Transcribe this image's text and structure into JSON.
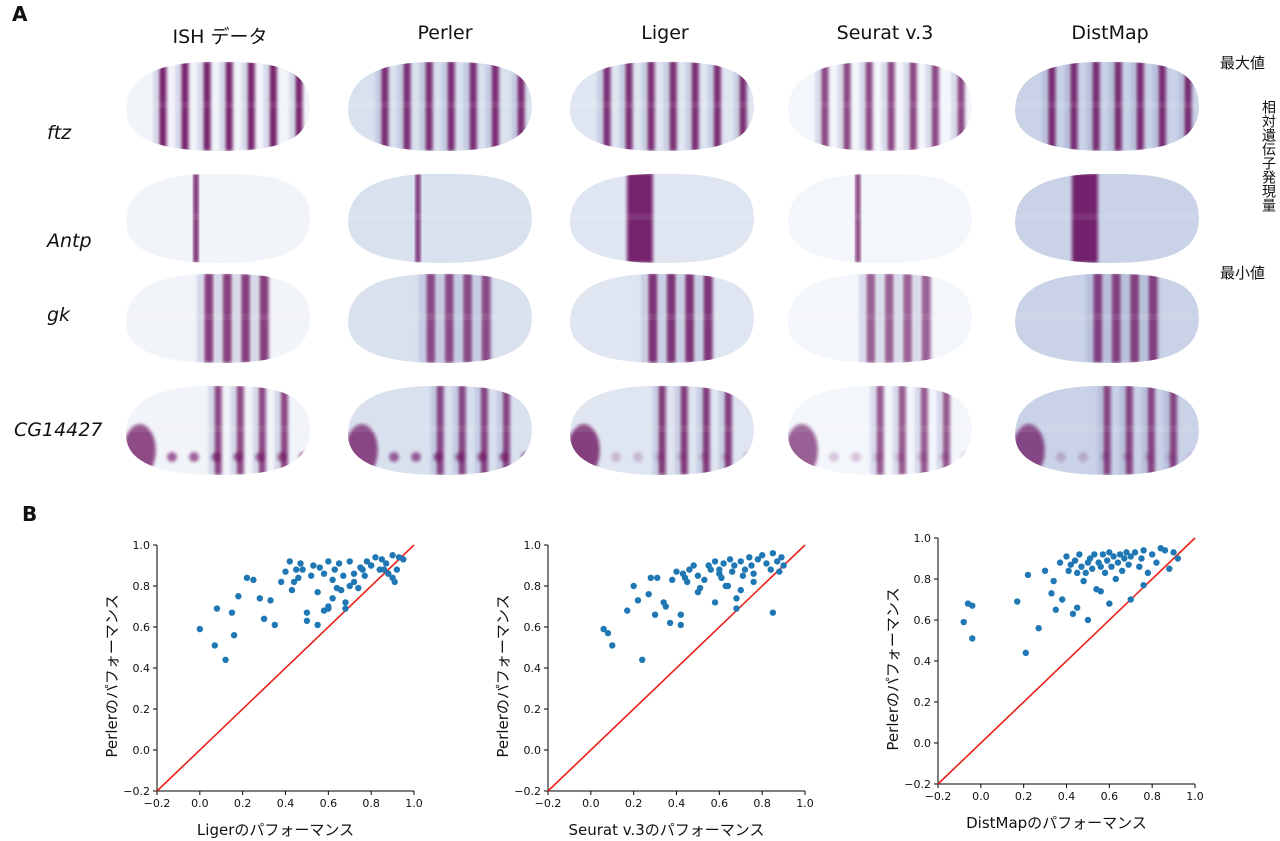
{
  "panel_a": {
    "letter": "A",
    "columns": [
      "ISH データ",
      "Perler",
      "Liger",
      "Seurat v.3",
      "DistMap"
    ],
    "genes": [
      "ftz",
      "Antp",
      "gk",
      "CG14427"
    ],
    "colorbar": {
      "max_label": "最大値",
      "min_label": "最小値",
      "title": "相対遺伝子発現量",
      "color_max": "#6a0a5e",
      "color_mid": "#8f93c6",
      "color_min": "#f3f6fb"
    }
  },
  "panel_b": {
    "letter": "B"
  },
  "chart_data": [
    {
      "type": "scatter",
      "xlabel": "Ligerのパフォーマンス",
      "ylabel": "Perlerのパフォーマンス",
      "xlim": [
        -0.2,
        1.0
      ],
      "ylim": [
        -0.2,
        1.0
      ],
      "ticks": [
        -0.2,
        0.0,
        0.2,
        0.4,
        0.6,
        0.8,
        1.0
      ],
      "diagonal": true,
      "point_color": "#1f77b4",
      "line_color": "#e8221b",
      "x": [
        0.0,
        0.07,
        0.08,
        0.12,
        0.15,
        0.16,
        0.18,
        0.22,
        0.25,
        0.28,
        0.3,
        0.33,
        0.35,
        0.38,
        0.4,
        0.42,
        0.43,
        0.45,
        0.46,
        0.47,
        0.5,
        0.52,
        0.53,
        0.55,
        0.55,
        0.56,
        0.58,
        0.6,
        0.6,
        0.62,
        0.63,
        0.64,
        0.65,
        0.66,
        0.67,
        0.68,
        0.7,
        0.7,
        0.72,
        0.74,
        0.75,
        0.77,
        0.78,
        0.8,
        0.82,
        0.84,
        0.85,
        0.87,
        0.88,
        0.9,
        0.91,
        0.92,
        0.93,
        0.95,
        0.5,
        0.58,
        0.62,
        0.68,
        0.72,
        0.76,
        0.8,
        0.86,
        0.9,
        0.44,
        0.48,
        0.6
      ],
      "y": [
        0.59,
        0.51,
        0.69,
        0.44,
        0.67,
        0.56,
        0.75,
        0.84,
        0.83,
        0.74,
        0.64,
        0.73,
        0.61,
        0.82,
        0.87,
        0.92,
        0.78,
        0.88,
        0.84,
        0.91,
        0.67,
        0.85,
        0.9,
        0.61,
        0.77,
        0.89,
        0.86,
        0.92,
        0.69,
        0.83,
        0.88,
        0.79,
        0.91,
        0.78,
        0.85,
        0.72,
        0.8,
        0.92,
        0.86,
        0.79,
        0.89,
        0.85,
        0.92,
        0.9,
        0.94,
        0.88,
        0.93,
        0.91,
        0.86,
        0.95,
        0.82,
        0.88,
        0.94,
        0.93,
        0.63,
        0.68,
        0.74,
        0.69,
        0.82,
        0.88,
        0.9,
        0.88,
        0.84,
        0.82,
        0.88,
        0.7
      ]
    },
    {
      "type": "scatter",
      "xlabel": "Seurat v.3のパフォーマンス",
      "ylabel": "Perlerのパフォーマンス",
      "xlim": [
        -0.2,
        1.0
      ],
      "ylim": [
        -0.2,
        1.0
      ],
      "ticks": [
        -0.2,
        0.0,
        0.2,
        0.4,
        0.6,
        0.8,
        1.0
      ],
      "diagonal": true,
      "point_color": "#1f77b4",
      "line_color": "#e8221b",
      "x": [
        0.06,
        0.08,
        0.1,
        0.17,
        0.2,
        0.22,
        0.24,
        0.27,
        0.28,
        0.3,
        0.31,
        0.35,
        0.37,
        0.38,
        0.4,
        0.42,
        0.43,
        0.45,
        0.46,
        0.48,
        0.5,
        0.51,
        0.53,
        0.55,
        0.56,
        0.58,
        0.6,
        0.61,
        0.62,
        0.63,
        0.65,
        0.66,
        0.67,
        0.68,
        0.7,
        0.71,
        0.72,
        0.74,
        0.75,
        0.76,
        0.78,
        0.8,
        0.82,
        0.84,
        0.85,
        0.87,
        0.88,
        0.89,
        0.9,
        0.42,
        0.5,
        0.58,
        0.64,
        0.7,
        0.76,
        0.85,
        0.34,
        0.44,
        0.6,
        0.68
      ],
      "y": [
        0.59,
        0.57,
        0.51,
        0.68,
        0.8,
        0.73,
        0.44,
        0.76,
        0.84,
        0.66,
        0.84,
        0.7,
        0.62,
        0.83,
        0.87,
        0.61,
        0.86,
        0.82,
        0.88,
        0.9,
        0.85,
        0.79,
        0.83,
        0.9,
        0.88,
        0.92,
        0.86,
        0.84,
        0.91,
        0.8,
        0.93,
        0.87,
        0.9,
        0.74,
        0.92,
        0.85,
        0.88,
        0.94,
        0.9,
        0.82,
        0.93,
        0.95,
        0.91,
        0.88,
        0.96,
        0.92,
        0.87,
        0.94,
        0.9,
        0.66,
        0.77,
        0.72,
        0.8,
        0.78,
        0.86,
        0.67,
        0.72,
        0.84,
        0.88,
        0.69
      ]
    },
    {
      "type": "scatter",
      "xlabel": "DistMapのパフォーマンス",
      "ylabel": "Perlerのパフォーマンス",
      "xlim": [
        -0.2,
        1.0
      ],
      "ylim": [
        -0.2,
        1.0
      ],
      "ticks": [
        -0.2,
        0.0,
        0.2,
        0.4,
        0.6,
        0.8,
        1.0
      ],
      "diagonal": true,
      "point_color": "#1f77b4",
      "line_color": "#e8221b",
      "x": [
        -0.08,
        -0.06,
        -0.04,
        -0.04,
        0.17,
        0.21,
        0.22,
        0.27,
        0.3,
        0.33,
        0.34,
        0.35,
        0.37,
        0.38,
        0.4,
        0.41,
        0.42,
        0.43,
        0.44,
        0.45,
        0.46,
        0.47,
        0.48,
        0.49,
        0.5,
        0.51,
        0.52,
        0.53,
        0.54,
        0.55,
        0.56,
        0.57,
        0.58,
        0.59,
        0.6,
        0.61,
        0.62,
        0.63,
        0.64,
        0.65,
        0.66,
        0.67,
        0.68,
        0.69,
        0.7,
        0.72,
        0.74,
        0.75,
        0.76,
        0.78,
        0.8,
        0.82,
        0.84,
        0.86,
        0.88,
        0.9,
        0.92,
        0.5,
        0.6,
        0.76,
        0.7,
        0.56,
        0.45
      ],
      "y": [
        0.59,
        0.68,
        0.51,
        0.67,
        0.69,
        0.44,
        0.82,
        0.56,
        0.84,
        0.73,
        0.79,
        0.65,
        0.88,
        0.7,
        0.91,
        0.84,
        0.87,
        0.63,
        0.89,
        0.83,
        0.92,
        0.86,
        0.79,
        0.83,
        0.88,
        0.9,
        0.85,
        0.92,
        0.75,
        0.88,
        0.86,
        0.92,
        0.83,
        0.89,
        0.93,
        0.86,
        0.91,
        0.8,
        0.88,
        0.92,
        0.84,
        0.9,
        0.93,
        0.87,
        0.91,
        0.93,
        0.86,
        0.9,
        0.94,
        0.83,
        0.92,
        0.88,
        0.95,
        0.94,
        0.85,
        0.93,
        0.9,
        0.6,
        0.68,
        0.77,
        0.7,
        0.74,
        0.66
      ]
    }
  ]
}
